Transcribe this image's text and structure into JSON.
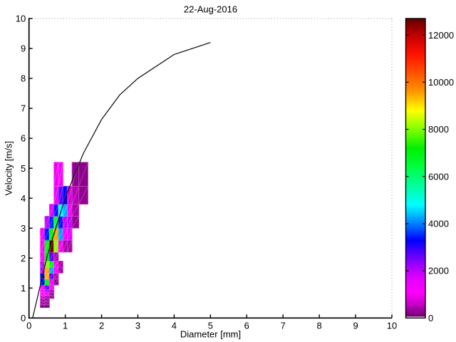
{
  "chart_data": {
    "type": "heatmap",
    "title": "22-Aug-2016",
    "xlabel": "Diameter [mm]",
    "ylabel": "Velocity [m/s]",
    "xlim": [
      0,
      10
    ],
    "ylim": [
      0,
      10
    ],
    "x_ticks": [
      0,
      1,
      2,
      3,
      4,
      5,
      6,
      7,
      8,
      9,
      10
    ],
    "y_ticks": [
      0,
      1,
      2,
      3,
      4,
      5,
      6,
      7,
      8,
      9,
      10
    ],
    "grid": "off",
    "box_top_right_style": "dotted",
    "diameter_bin_edges_mm": [
      0.312,
      0.437,
      0.562,
      0.687,
      0.812,
      0.937,
      1.062,
      1.187,
      1.375,
      1.625
    ],
    "velocity_bin_edges_ms": [
      0.35,
      0.45,
      0.55,
      0.65,
      0.75,
      0.85,
      0.95,
      1.1,
      1.3,
      1.5,
      1.7,
      1.9,
      2.2,
      2.6,
      3.0,
      3.4,
      3.8,
      4.4,
      5.2
    ],
    "cells": [
      {
        "v_bin": 0,
        "d_bin": 0,
        "value": 250
      },
      {
        "v_bin": 0,
        "d_bin": 1,
        "value": 220
      },
      {
        "v_bin": 1,
        "d_bin": 0,
        "value": 350
      },
      {
        "v_bin": 1,
        "d_bin": 1,
        "value": 300
      },
      {
        "v_bin": 2,
        "d_bin": 0,
        "value": 380
      },
      {
        "v_bin": 2,
        "d_bin": 1,
        "value": 320
      },
      {
        "v_bin": 3,
        "d_bin": 0,
        "value": 700
      },
      {
        "v_bin": 3,
        "d_bin": 1,
        "value": 400
      },
      {
        "v_bin": 3,
        "d_bin": 2,
        "value": 250
      },
      {
        "v_bin": 4,
        "d_bin": 0,
        "value": 1100
      },
      {
        "v_bin": 4,
        "d_bin": 1,
        "value": 1000
      },
      {
        "v_bin": 4,
        "d_bin": 2,
        "value": 350
      },
      {
        "v_bin": 5,
        "d_bin": 0,
        "value": 1150
      },
      {
        "v_bin": 5,
        "d_bin": 1,
        "value": 1950
      },
      {
        "v_bin": 5,
        "d_bin": 2,
        "value": 400
      },
      {
        "v_bin": 6,
        "d_bin": 0,
        "value": 1100
      },
      {
        "v_bin": 6,
        "d_bin": 1,
        "value": 2650
      },
      {
        "v_bin": 6,
        "d_bin": 2,
        "value": 1000
      },
      {
        "v_bin": 7,
        "d_bin": 0,
        "value": 3300
      },
      {
        "v_bin": 7,
        "d_bin": 1,
        "value": 7100
      },
      {
        "v_bin": 7,
        "d_bin": 2,
        "value": 1100
      },
      {
        "v_bin": 7,
        "d_bin": 3,
        "value": 250
      },
      {
        "v_bin": 8,
        "d_bin": 0,
        "value": 3300
      },
      {
        "v_bin": 8,
        "d_bin": 1,
        "value": 9400
      },
      {
        "v_bin": 8,
        "d_bin": 2,
        "value": 2650
      },
      {
        "v_bin": 8,
        "d_bin": 3,
        "value": 500
      },
      {
        "v_bin": 9,
        "d_bin": 0,
        "value": 2100
      },
      {
        "v_bin": 9,
        "d_bin": 1,
        "value": 9500
      },
      {
        "v_bin": 9,
        "d_bin": 2,
        "value": 4250
      },
      {
        "v_bin": 9,
        "d_bin": 3,
        "value": 1100
      },
      {
        "v_bin": 9,
        "d_bin": 4,
        "value": 400
      },
      {
        "v_bin": 10,
        "d_bin": 0,
        "value": 1950
      },
      {
        "v_bin": 10,
        "d_bin": 1,
        "value": 8000
      },
      {
        "v_bin": 10,
        "d_bin": 2,
        "value": 6800
      },
      {
        "v_bin": 10,
        "d_bin": 3,
        "value": 1100
      },
      {
        "v_bin": 10,
        "d_bin": 4,
        "value": 400
      },
      {
        "v_bin": 11,
        "d_bin": 0,
        "value": 1150
      },
      {
        "v_bin": 11,
        "d_bin": 1,
        "value": 7100
      },
      {
        "v_bin": 11,
        "d_bin": 2,
        "value": 2700
      },
      {
        "v_bin": 11,
        "d_bin": 3,
        "value": 500
      },
      {
        "v_bin": 12,
        "d_bin": 0,
        "value": 1100
      },
      {
        "v_bin": 12,
        "d_bin": 1,
        "value": 7000
      },
      {
        "v_bin": 12,
        "d_bin": 2,
        "value": 12600
      },
      {
        "v_bin": 12,
        "d_bin": 3,
        "value": 8100
      },
      {
        "v_bin": 12,
        "d_bin": 4,
        "value": 1050
      },
      {
        "v_bin": 12,
        "d_bin": 5,
        "value": 450
      },
      {
        "v_bin": 12,
        "d_bin": 6,
        "value": 400
      },
      {
        "v_bin": 13,
        "d_bin": 0,
        "value": 1050
      },
      {
        "v_bin": 13,
        "d_bin": 1,
        "value": 3400
      },
      {
        "v_bin": 13,
        "d_bin": 2,
        "value": 7100
      },
      {
        "v_bin": 13,
        "d_bin": 3,
        "value": 9500
      },
      {
        "v_bin": 13,
        "d_bin": 4,
        "value": 4200
      },
      {
        "v_bin": 13,
        "d_bin": 5,
        "value": 1050
      },
      {
        "v_bin": 13,
        "d_bin": 6,
        "value": 1600
      },
      {
        "v_bin": 14,
        "d_bin": 1,
        "value": 1950
      },
      {
        "v_bin": 14,
        "d_bin": 2,
        "value": 3500
      },
      {
        "v_bin": 14,
        "d_bin": 3,
        "value": 6600
      },
      {
        "v_bin": 14,
        "d_bin": 4,
        "value": 3400
      },
      {
        "v_bin": 14,
        "d_bin": 5,
        "value": 1900
      },
      {
        "v_bin": 14,
        "d_bin": 6,
        "value": 1950
      },
      {
        "v_bin": 14,
        "d_bin": 7,
        "value": 300
      },
      {
        "v_bin": 15,
        "d_bin": 2,
        "value": 1700
      },
      {
        "v_bin": 15,
        "d_bin": 3,
        "value": 3100
      },
      {
        "v_bin": 15,
        "d_bin": 4,
        "value": 4800
      },
      {
        "v_bin": 15,
        "d_bin": 5,
        "value": 4300
      },
      {
        "v_bin": 15,
        "d_bin": 6,
        "value": 1050
      },
      {
        "v_bin": 15,
        "d_bin": 7,
        "value": 420
      },
      {
        "v_bin": 16,
        "d_bin": 3,
        "value": 1000
      },
      {
        "v_bin": 16,
        "d_bin": 4,
        "value": 2650
      },
      {
        "v_bin": 16,
        "d_bin": 5,
        "value": 3300
      },
      {
        "v_bin": 16,
        "d_bin": 6,
        "value": 700
      },
      {
        "v_bin": 16,
        "d_bin": 7,
        "value": 500
      },
      {
        "v_bin": 16,
        "d_bin": 8,
        "value": 280
      },
      {
        "v_bin": 17,
        "d_bin": 3,
        "value": 950
      },
      {
        "v_bin": 17,
        "d_bin": 4,
        "value": 1050
      },
      {
        "v_bin": 17,
        "d_bin": 7,
        "value": 260
      },
      {
        "v_bin": 17,
        "d_bin": 8,
        "value": 230
      }
    ],
    "curve": {
      "name": "terminal-velocity-curve",
      "color": "#1a1a1a",
      "points": [
        [
          0.1,
          0.0
        ],
        [
          0.5,
          2.06
        ],
        [
          1.0,
          4.03
        ],
        [
          1.5,
          5.5
        ],
        [
          2.0,
          6.63
        ],
        [
          2.5,
          7.45
        ],
        [
          3.0,
          8.0
        ],
        [
          4.0,
          8.8
        ],
        [
          5.0,
          9.2
        ]
      ]
    },
    "colorbar": {
      "min": 0,
      "max": 12700,
      "ticks": [
        0,
        2000,
        4000,
        6000,
        8000,
        10000,
        12000
      ],
      "colormap_stops": [
        [
          0,
          "#ffffff"
        ],
        [
          55,
          "#ffffff"
        ],
        [
          56,
          "#700070"
        ],
        [
          600,
          "#c800c8"
        ],
        [
          1100,
          "#ff00ff"
        ],
        [
          1700,
          "#e100ff"
        ],
        [
          2300,
          "#9600ff"
        ],
        [
          3300,
          "#0000ff"
        ],
        [
          4000,
          "#0080ff"
        ],
        [
          4800,
          "#00ffff"
        ],
        [
          5600,
          "#00ffa0"
        ],
        [
          6400,
          "#00ff40"
        ],
        [
          7200,
          "#00f000"
        ],
        [
          8000,
          "#80ff00"
        ],
        [
          8800,
          "#ffff00"
        ],
        [
          9600,
          "#ff9600"
        ],
        [
          10400,
          "#ff5000"
        ],
        [
          11200,
          "#ff1000"
        ],
        [
          12000,
          "#c00000"
        ],
        [
          12700,
          "#600000"
        ]
      ]
    }
  },
  "colors": {
    "axis": "#000000",
    "background": "#ffffff",
    "dotted_border": "#999999"
  }
}
